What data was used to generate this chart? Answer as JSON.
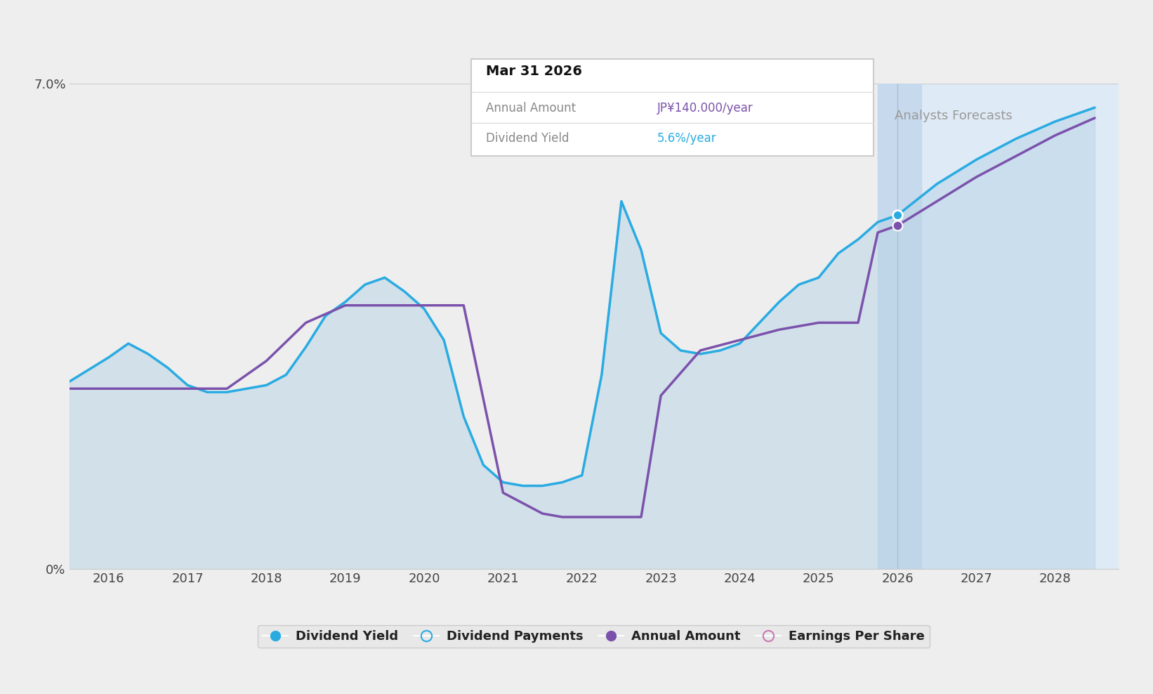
{
  "bg_color": "#eeeeee",
  "plot_bg_color": "#eeeeee",
  "ylim": [
    0,
    7.0
  ],
  "xlim": [
    2015.5,
    2028.8
  ],
  "xtick_years": [
    2016,
    2017,
    2018,
    2019,
    2020,
    2021,
    2022,
    2023,
    2024,
    2025,
    2026,
    2027,
    2028
  ],
  "past_boundary": 2025.75,
  "highlight_color": "#c5d8ec",
  "forecast_region_color": "#daeaf7",
  "area_fill_color": "#b8d4e8",
  "area_fill_alpha": 0.5,
  "line_blue_color": "#29abe2",
  "line_purple_color": "#7b52ab",
  "line_width": 2.5,
  "tooltip": {
    "title": "Mar 31 2026",
    "row1_label": "Annual Amount",
    "row1_value": "JP¥140.000/year",
    "row1_value_color": "#7b52ab",
    "row2_label": "Dividend Yield",
    "row2_value": "5.6%/year",
    "row2_value_color": "#29abe2"
  },
  "blue_x": [
    2015.5,
    2016.0,
    2016.25,
    2016.5,
    2016.75,
    2017.0,
    2017.25,
    2017.5,
    2017.75,
    2018.0,
    2018.25,
    2018.5,
    2018.75,
    2019.0,
    2019.25,
    2019.5,
    2019.75,
    2020.0,
    2020.25,
    2020.5,
    2020.75,
    2021.0,
    2021.25,
    2021.5,
    2021.75,
    2022.0,
    2022.25,
    2022.5,
    2022.75,
    2023.0,
    2023.25,
    2023.5,
    2023.75,
    2024.0,
    2024.25,
    2024.5,
    2024.75,
    2025.0,
    2025.25,
    2025.5,
    2025.75,
    2026.0,
    2026.5,
    2027.0,
    2027.5,
    2028.0,
    2028.5
  ],
  "blue_y": [
    2.7,
    3.05,
    3.25,
    3.1,
    2.9,
    2.65,
    2.55,
    2.55,
    2.6,
    2.65,
    2.8,
    3.2,
    3.65,
    3.85,
    4.1,
    4.2,
    4.0,
    3.75,
    3.3,
    2.2,
    1.5,
    1.25,
    1.2,
    1.2,
    1.25,
    1.35,
    2.8,
    5.3,
    4.6,
    3.4,
    3.15,
    3.1,
    3.15,
    3.25,
    3.55,
    3.85,
    4.1,
    4.2,
    4.55,
    4.75,
    5.0,
    5.1,
    5.55,
    5.9,
    6.2,
    6.45,
    6.65
  ],
  "purple_x": [
    2015.5,
    2016.0,
    2016.5,
    2017.0,
    2017.5,
    2018.0,
    2018.5,
    2019.0,
    2019.5,
    2020.0,
    2020.5,
    2021.0,
    2021.25,
    2021.5,
    2021.75,
    2022.0,
    2022.25,
    2022.5,
    2022.75,
    2023.0,
    2023.5,
    2024.0,
    2024.5,
    2025.0,
    2025.5,
    2025.75,
    2026.0,
    2026.5,
    2027.0,
    2027.5,
    2028.0,
    2028.5
  ],
  "purple_y": [
    2.6,
    2.6,
    2.6,
    2.6,
    2.6,
    3.0,
    3.55,
    3.8,
    3.8,
    3.8,
    3.8,
    1.1,
    0.95,
    0.8,
    0.75,
    0.75,
    0.75,
    0.75,
    0.75,
    2.5,
    3.15,
    3.3,
    3.45,
    3.55,
    3.55,
    4.85,
    4.95,
    5.3,
    5.65,
    5.95,
    6.25,
    6.5
  ],
  "marker_x": 2026.0,
  "marker_blue_y": 5.1,
  "marker_purple_y": 4.95,
  "legend_items": [
    {
      "label": "Dividend Yield",
      "color": "#29abe2",
      "filled": true
    },
    {
      "label": "Dividend Payments",
      "color": "#29abe2",
      "filled": false
    },
    {
      "label": "Annual Amount",
      "color": "#7b52ab",
      "filled": true
    },
    {
      "label": "Earnings Per Share",
      "color": "#c87ab0",
      "filled": false
    }
  ]
}
